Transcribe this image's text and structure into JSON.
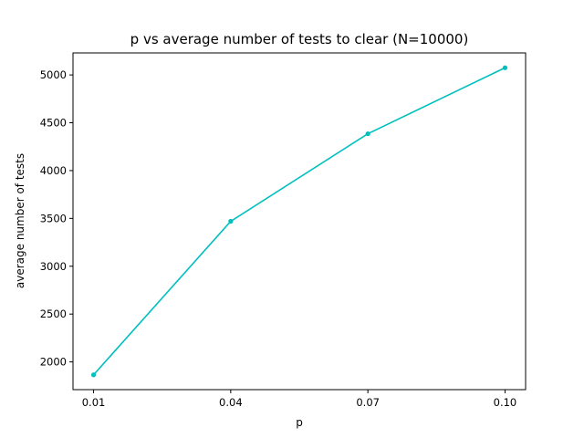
{
  "chart_data": {
    "type": "line",
    "title": "p vs average number of tests to clear (N=10000)",
    "xlabel": "p",
    "ylabel": "average number of tests",
    "x": [
      0.01,
      0.04,
      0.07,
      0.1
    ],
    "x_tick_labels": [
      "0.01",
      "0.04",
      "0.07",
      "0.10"
    ],
    "y_ticks": [
      2000,
      2500,
      3000,
      3500,
      4000,
      4500,
      5000
    ],
    "y_tick_labels": [
      "2000",
      "2500",
      "3000",
      "3500",
      "4000",
      "4500",
      "5000"
    ],
    "xlim": [
      0.0055,
      0.1045
    ],
    "ylim": [
      1710,
      5230
    ],
    "series": [
      {
        "values": [
          1865,
          3470,
          4385,
          5075
        ],
        "color": "#00bfbf",
        "marker": "dot"
      }
    ],
    "grid": false,
    "legend": "none"
  }
}
